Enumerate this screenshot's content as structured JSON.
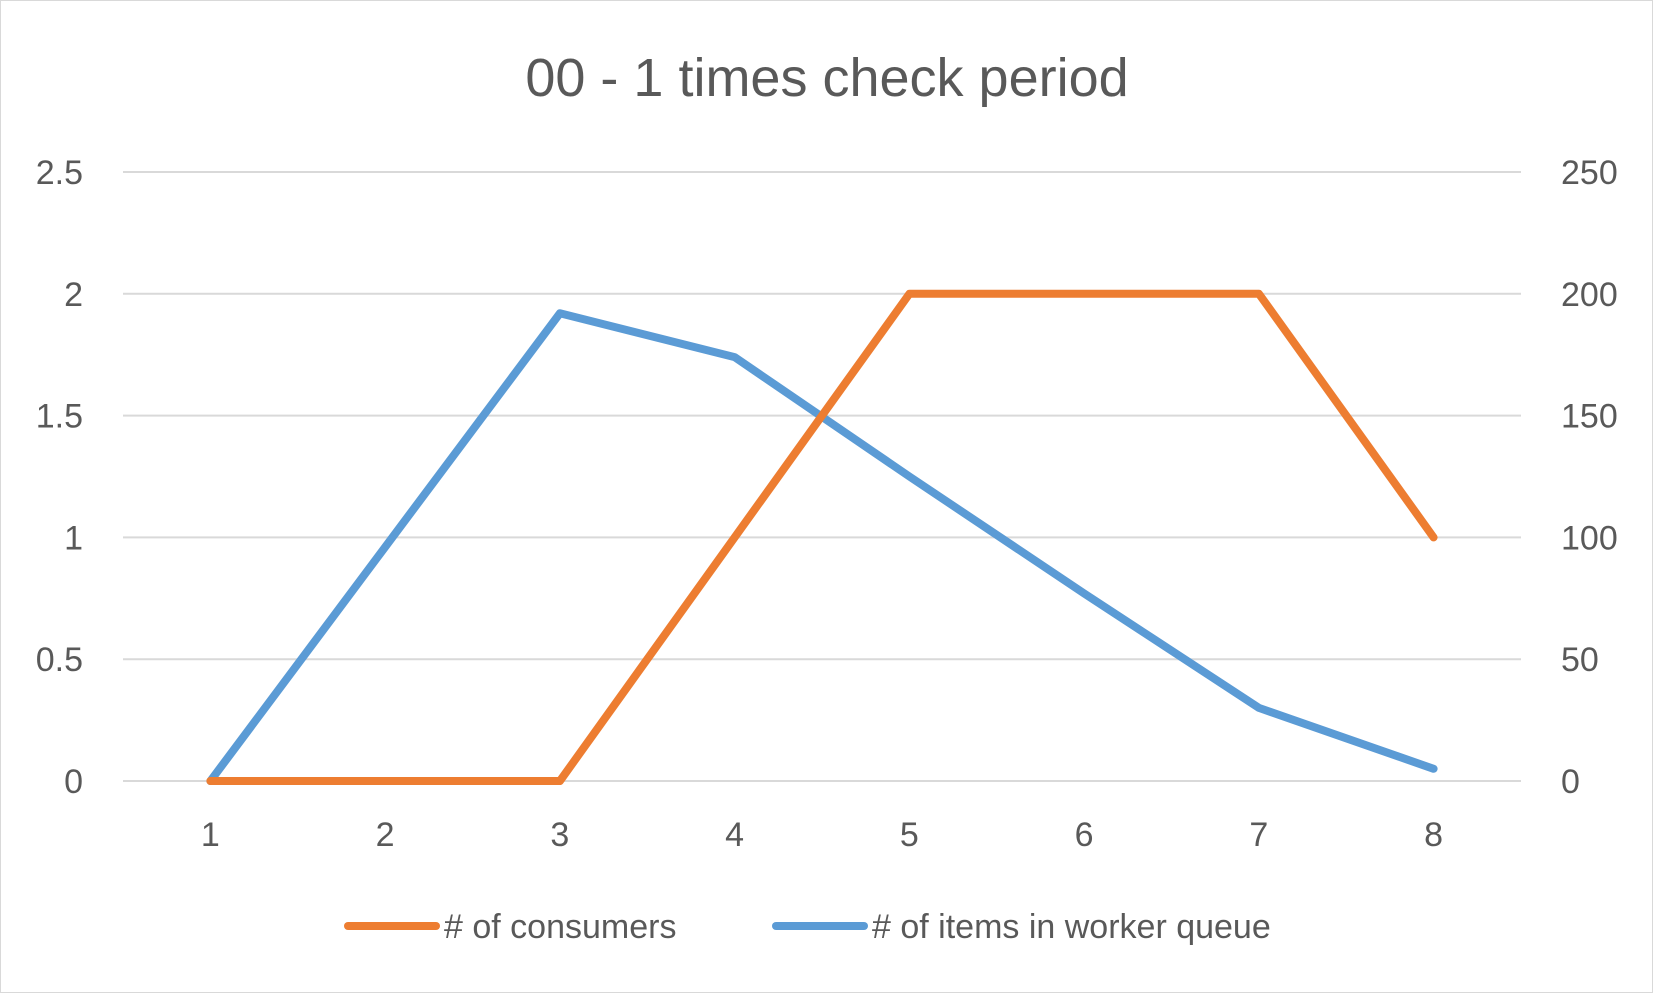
{
  "chart_data": {
    "type": "line",
    "title": "00 - 1 times check period",
    "categories": [
      "1",
      "2",
      "3",
      "4",
      "5",
      "6",
      "7",
      "8"
    ],
    "y_left": {
      "ylim": [
        0,
        2.5
      ],
      "ticks": [
        0,
        0.5,
        1,
        1.5,
        2,
        2.5
      ],
      "tick_labels": [
        "0",
        "0.5",
        "1",
        "1.5",
        "2",
        "2.5"
      ]
    },
    "y_right": {
      "ylim": [
        0,
        250
      ],
      "ticks": [
        0,
        50,
        100,
        150,
        200,
        250
      ],
      "tick_labels": [
        "0",
        "50",
        "100",
        "150",
        "200",
        "250"
      ]
    },
    "grid": true,
    "legend_position": "bottom",
    "series": [
      {
        "name": "# of consumers",
        "axis": "left",
        "color": "#ed7d31",
        "values": [
          0,
          0,
          0,
          1,
          2,
          2,
          2,
          1
        ]
      },
      {
        "name": "# of items in worker queue",
        "axis": "right",
        "color": "#5b9bd5",
        "values": [
          0,
          96,
          192,
          174,
          125,
          77,
          30,
          5
        ]
      }
    ]
  }
}
